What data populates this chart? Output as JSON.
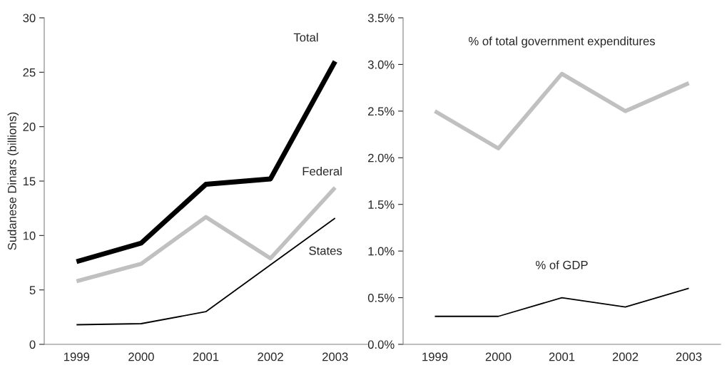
{
  "chart_data": [
    {
      "type": "line",
      "ylabel": "Sudanese Dinars (billions)",
      "categories": [
        "1999",
        "2000",
        "2001",
        "2002",
        "2003"
      ],
      "ylim": [
        0,
        30
      ],
      "yticks": [
        0,
        5,
        10,
        15,
        20,
        25,
        30
      ],
      "grid": false,
      "legend": false,
      "series": [
        {
          "name": "Total",
          "color": "#000000",
          "values": [
            7.6,
            9.3,
            14.7,
            15.2,
            26.0
          ]
        },
        {
          "name": "Federal",
          "color": "#c0c0c0",
          "values": [
            5.8,
            7.4,
            11.7,
            7.9,
            14.4
          ]
        },
        {
          "name": "States",
          "color": "#000000",
          "values": [
            1.8,
            1.9,
            3.0,
            7.3,
            11.6
          ]
        }
      ]
    },
    {
      "type": "line",
      "categories": [
        "1999",
        "2000",
        "2001",
        "2002",
        "2003"
      ],
      "ylim": [
        0,
        3.5
      ],
      "yticks": [
        {
          "value": 0,
          "label": "0.0%"
        },
        {
          "value": 0.5,
          "label": "0.5%"
        },
        {
          "value": 1.0,
          "label": "1.0%"
        },
        {
          "value": 1.5,
          "label": "1.5%"
        },
        {
          "value": 2.0,
          "label": "2.0%"
        },
        {
          "value": 2.5,
          "label": "2.5%"
        },
        {
          "value": 3.0,
          "label": "3.0%"
        },
        {
          "value": 3.5,
          "label": "3.5%"
        }
      ],
      "grid": false,
      "legend": false,
      "series": [
        {
          "name": "% of total government expenditures",
          "color": "#c0c0c0",
          "values": [
            2.5,
            2.1,
            2.9,
            2.5,
            2.8
          ]
        },
        {
          "name": "% of GDP",
          "color": "#000000",
          "values": [
            0.3,
            0.3,
            0.5,
            0.4,
            0.6
          ]
        }
      ]
    }
  ]
}
